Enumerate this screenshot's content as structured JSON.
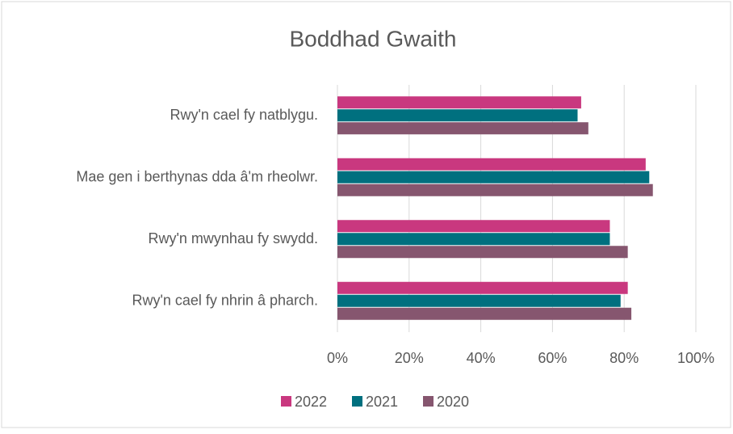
{
  "chart_data": {
    "type": "bar",
    "orientation": "horizontal",
    "title": "Boddhad Gwaith",
    "categories": [
      "Rwy'n cael fy natblygu.",
      "Mae gen i berthynas dda â'm rheolwr.",
      "Rwy'n mwynhau fy swydd.",
      "Rwy'n cael fy nhrin â pharch."
    ],
    "series": [
      {
        "name": "2022",
        "color": "#c9387f",
        "values": [
          68,
          86,
          76,
          81
        ]
      },
      {
        "name": "2021",
        "color": "#00707f",
        "values": [
          67,
          87,
          76,
          79
        ]
      },
      {
        "name": "2020",
        "color": "#86566f",
        "values": [
          70,
          88,
          81,
          82
        ]
      }
    ],
    "xlim": [
      0,
      100
    ],
    "xticks": [
      {
        "value": 0,
        "label": "0%"
      },
      {
        "value": 20,
        "label": "20%"
      },
      {
        "value": 40,
        "label": "40%"
      },
      {
        "value": 60,
        "label": "60%"
      },
      {
        "value": 80,
        "label": "80%"
      },
      {
        "value": 100,
        "label": "100%"
      }
    ],
    "grid": true,
    "legend": "bottom"
  }
}
